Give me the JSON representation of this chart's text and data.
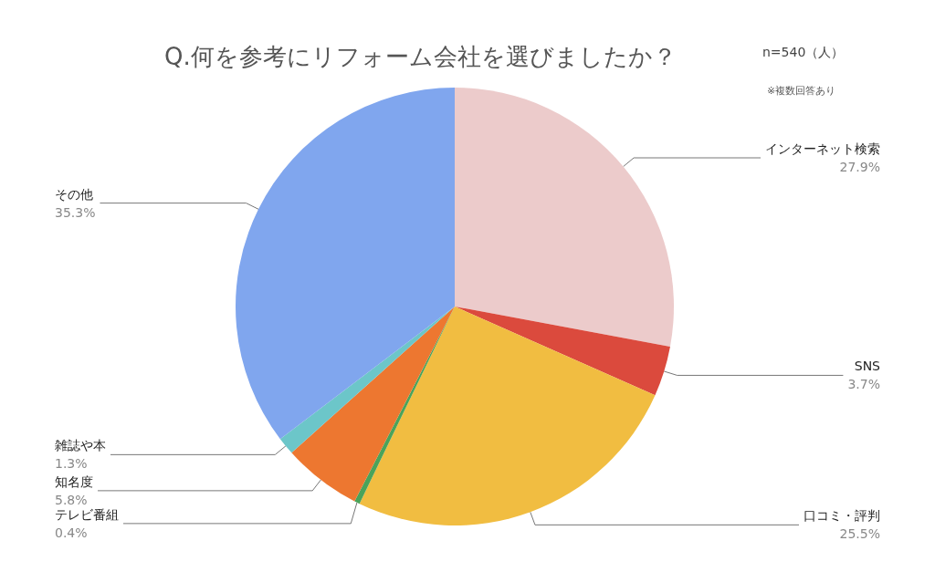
{
  "chart_data": {
    "type": "pie",
    "title": "Q.何を参考にリフォーム会社を選びましたか？",
    "categories": [
      "インターネット検索",
      "SNS",
      "口コミ・評判",
      "テレビ番組",
      "知名度",
      "雑誌や本",
      "その他"
    ],
    "values": [
      27.9,
      3.7,
      25.5,
      0.4,
      5.8,
      1.3,
      35.3
    ],
    "colors": [
      "#eccbcb",
      "#db4a3d",
      "#f1bd41",
      "#4aa35a",
      "#ed7730",
      "#6cc6c9",
      "#80a6ee"
    ],
    "value_labels": [
      "27.9%",
      "3.7%",
      "25.5%",
      "0.4%",
      "5.8%",
      "1.3%",
      "35.3%"
    ],
    "annotations": [
      "n=540（人）",
      "※複数回答あり"
    ],
    "legend": false
  }
}
